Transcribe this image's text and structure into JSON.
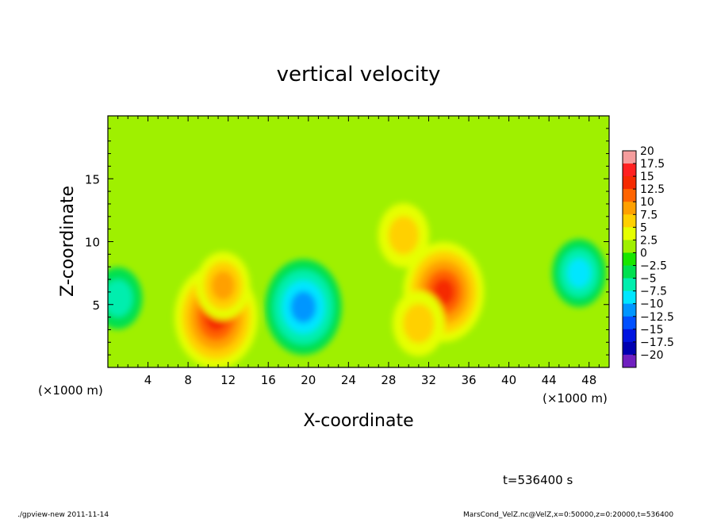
{
  "chart_data": {
    "type": "heatmap",
    "title": "vertical velocity",
    "xlabel": "X-coordinate",
    "ylabel": "Z-coordinate",
    "x_unit_left": "(×1000 m)",
    "x_unit_right": "(×1000 m)",
    "xlim": [
      0,
      50
    ],
    "ylim": [
      0,
      20
    ],
    "x_ticks": [
      4,
      8,
      12,
      16,
      20,
      24,
      28,
      32,
      36,
      40,
      44,
      48
    ],
    "y_ticks": [
      5,
      10,
      15
    ],
    "grid": false,
    "colorbar": {
      "levels": [
        "20",
        "17.5",
        "15",
        "12.5",
        "10",
        "7.5",
        "5",
        "2.5",
        "0",
        "−2.5",
        "−5",
        "−7.5",
        "−10",
        "−12.5",
        "−15",
        "−17.5",
        "−20"
      ],
      "colors": [
        "#f59d9d",
        "#ff2020",
        "#f52a00",
        "#ff6400",
        "#ffa000",
        "#ffd000",
        "#e6ff00",
        "#9ff000",
        "#19e600",
        "#00e050",
        "#00eeae",
        "#00e6ff",
        "#0096ff",
        "#0050ff",
        "#0014e0",
        "#0000b0",
        "#7020c0"
      ]
    },
    "background_value": 1.0,
    "features": [
      {
        "name": "updraft",
        "x": 10.8,
        "z": 4.0,
        "peak": 15.0
      },
      {
        "name": "updraft",
        "x": 11.5,
        "z": 6.5,
        "peak": 9.0
      },
      {
        "name": "downdraft",
        "x": 19.5,
        "z": 4.8,
        "peak": -12.5
      },
      {
        "name": "updraft",
        "x": 33.5,
        "z": 6.0,
        "peak": 14.0
      },
      {
        "name": "updraft",
        "x": 31.0,
        "z": 3.5,
        "peak": 8.0
      },
      {
        "name": "updraft",
        "x": 29.5,
        "z": 10.5,
        "peak": 7.5
      },
      {
        "name": "downdraft",
        "x": 47.0,
        "z": 7.5,
        "peak": -9.0
      },
      {
        "name": "downdraft",
        "x": 1.0,
        "z": 5.5,
        "peak": -6.5
      }
    ]
  },
  "footer": {
    "time_label": "t=536400 s",
    "program": "./gpview-new  2011-11-14",
    "source": "MarsCond_VelZ.nc@VelZ,x=0:50000,z=0:20000,t=536400"
  }
}
